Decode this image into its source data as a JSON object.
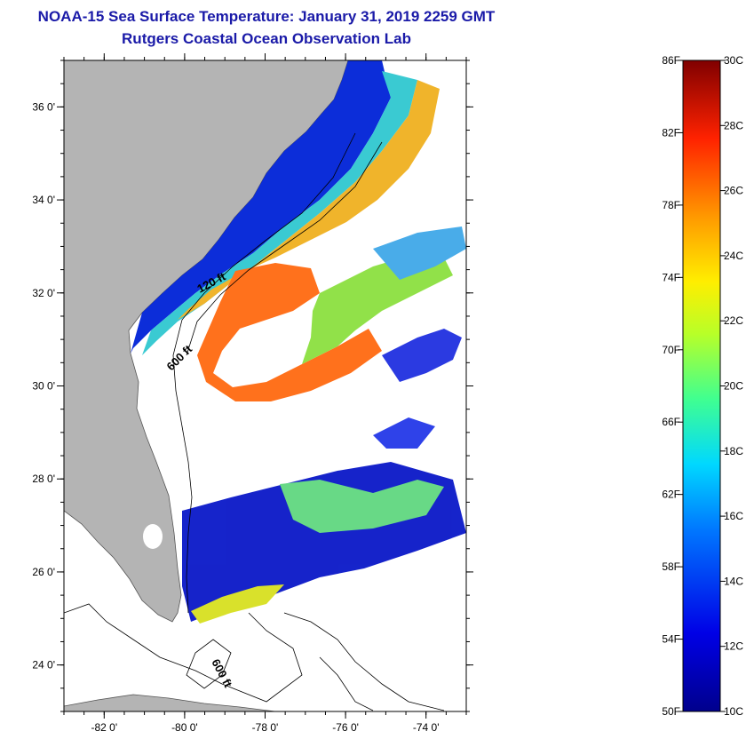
{
  "title": "NOAA-15 Sea Surface Temperature:  January 31, 2019 2259 GMT",
  "subtitle": "Rutgers Coastal Ocean Observation Lab",
  "map": {
    "lat_ticks": [
      {
        "value": 36,
        "label": "36 0'"
      },
      {
        "value": 34,
        "label": "34 0'"
      },
      {
        "value": 32,
        "label": "32 0'"
      },
      {
        "value": 30,
        "label": "30 0'"
      },
      {
        "value": 28,
        "label": "28 0'"
      },
      {
        "value": 26,
        "label": "26 0'"
      },
      {
        "value": 24,
        "label": "24 0'"
      }
    ],
    "lon_ticks": [
      {
        "value": -82,
        "label": "-82 0'"
      },
      {
        "value": -80,
        "label": "-80 0'"
      },
      {
        "value": -78,
        "label": "-78 0'"
      },
      {
        "value": -76,
        "label": "-76 0'"
      },
      {
        "value": -74,
        "label": "-74 0'"
      }
    ],
    "lon_range": [
      -83,
      -73
    ],
    "lat_range": [
      23,
      37
    ],
    "contour_labels": [
      "120 ft",
      "600 ft",
      "600 ft"
    ],
    "land_color": "#b4b4b4"
  },
  "colorbar": {
    "fahrenheit": [
      "86F",
      "82F",
      "78F",
      "74F",
      "70F",
      "66F",
      "62F",
      "58F",
      "54F",
      "50F"
    ],
    "celsius": [
      "30C",
      "28C",
      "26C",
      "24C",
      "22C",
      "20C",
      "18C",
      "16C",
      "14C",
      "12C",
      "10C"
    ],
    "range_f": [
      50,
      86
    ],
    "range_c": [
      10,
      30
    ]
  }
}
